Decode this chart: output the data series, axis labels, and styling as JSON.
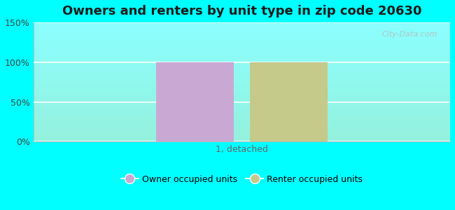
{
  "title": "Owners and renters by unit type in zip code 20630",
  "owner_values": [
    100
  ],
  "renter_values": [
    100
  ],
  "owner_color": "#c9a8d4",
  "renter_color": "#c5c98a",
  "ylim": [
    0,
    150
  ],
  "yticks": [
    0,
    50,
    100,
    150
  ],
  "ytick_labels": [
    "0%",
    "50%",
    "100%",
    "150%"
  ],
  "xlabel": "1, detached",
  "owner_label": "Owner occupied units",
  "renter_label": "Renter occupied units",
  "bg_outer": "#00ffff",
  "watermark": "City-Data.com",
  "bar_width": 0.3
}
